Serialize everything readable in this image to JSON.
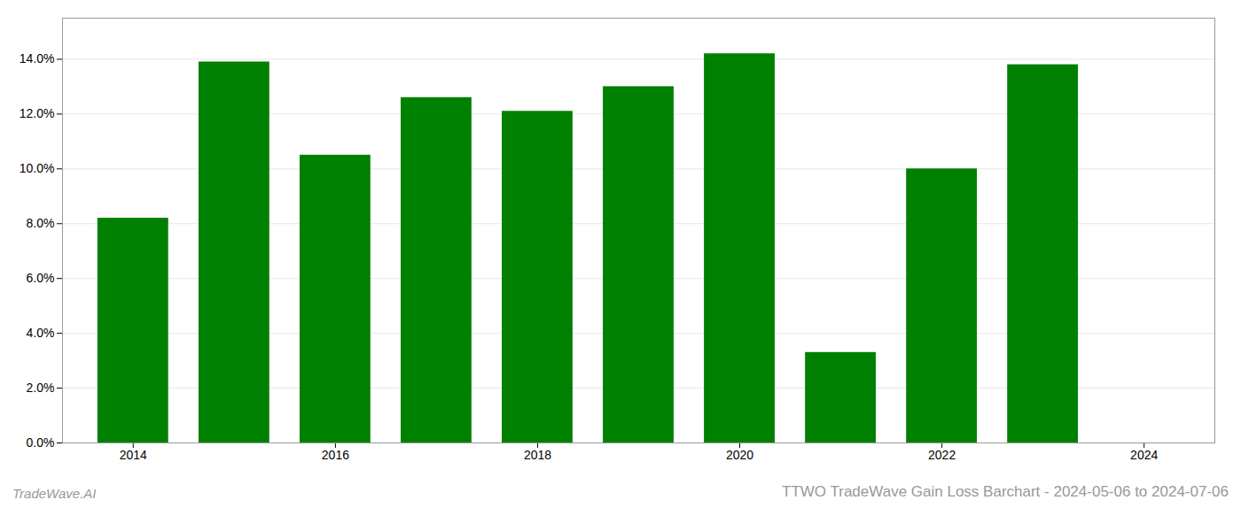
{
  "chart_data": {
    "type": "bar",
    "title": "TTWO TradeWave Gain Loss Barchart - 2024-05-06 to 2024-07-06",
    "annotations": [
      "TradeWave.AI"
    ],
    "x": [
      2014,
      2015,
      2016,
      2017,
      2018,
      2019,
      2020,
      2021,
      2022,
      2023
    ],
    "values": [
      0.082,
      0.139,
      0.105,
      0.126,
      0.121,
      0.13,
      0.142,
      0.033,
      0.1,
      0.138
    ],
    "color": "#008000",
    "xlim": [
      2013.3,
      2024.7
    ],
    "xticks": [
      2014,
      2016,
      2018,
      2020,
      2022,
      2024
    ],
    "ylim": [
      0.0,
      0.155
    ],
    "yticks": [
      {
        "value": 0.0,
        "label": "0.0%"
      },
      {
        "value": 0.02,
        "label": "2.0%"
      },
      {
        "value": 0.04,
        "label": "4.0%"
      },
      {
        "value": 0.06,
        "label": "6.0%"
      },
      {
        "value": 0.08,
        "label": "8.0%"
      },
      {
        "value": 0.1,
        "label": "10.0%"
      },
      {
        "value": 0.12,
        "label": "12.0%"
      },
      {
        "value": 0.14,
        "label": "14.0%"
      }
    ],
    "grid": true
  }
}
